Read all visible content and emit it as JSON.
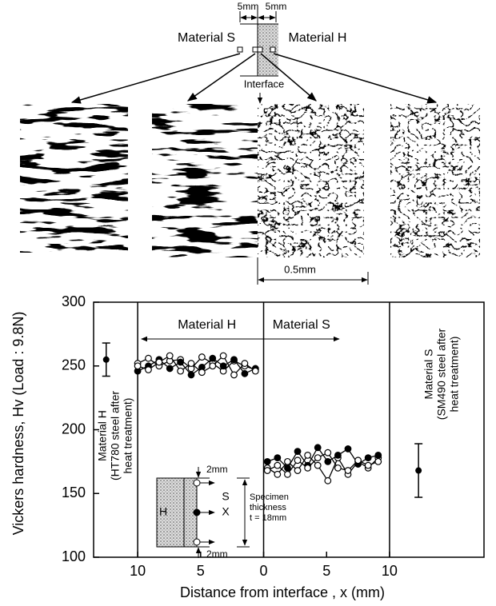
{
  "diagram": {
    "dimension_labels": [
      "5mm",
      "5mm"
    ],
    "left_label": "Material S",
    "right_label": "Material H",
    "interface_label": "Interface",
    "scale_bar_label": "0.5mm"
  },
  "chart_data": {
    "type": "line",
    "y_label": "Vickers hardness, Hv (Load : 9.8N)",
    "x_label": "Distance from interface , x (mm)",
    "xlim": [
      -13.5,
      17.5
    ],
    "ylim": [
      100,
      300
    ],
    "xticks": [
      {
        "value": -10,
        "label": "10"
      },
      {
        "value": -5,
        "label": "5"
      },
      {
        "value": 0,
        "label": "0"
      },
      {
        "value": 5,
        "label": "5"
      },
      {
        "value": 10,
        "label": "10"
      }
    ],
    "yticks": [
      100,
      150,
      200,
      250,
      300
    ],
    "dividers": [
      -10,
      0,
      10
    ],
    "x": [
      -10,
      -9.15,
      -8.3,
      -7.45,
      -6.6,
      -5.75,
      -4.9,
      -4.05,
      -3.2,
      -2.35,
      -1.5,
      -0.65,
      0,
      0.3,
      1.1,
      1.9,
      2.7,
      3.5,
      4.3,
      5.1,
      5.9,
      6.7,
      7.5,
      8.3,
      9.1
    ],
    "series": [
      {
        "color": "#000000",
        "marker": "open",
        "values": [
          252,
          256,
          250,
          254,
          255,
          248,
          257,
          252,
          246,
          254,
          250,
          247,
          null,
          170,
          165,
          175,
          168,
          180,
          172,
          160,
          178,
          165,
          175,
          170,
          178
        ]
      },
      {
        "color": "#000000",
        "marker": "filled",
        "values": [
          246,
          250,
          255,
          248,
          253,
          243,
          249,
          256,
          250,
          255,
          244,
          248,
          null,
          175,
          178,
          170,
          183,
          172,
          186,
          175,
          180,
          185,
          173,
          178,
          180
        ]
      },
      {
        "color": "#000000",
        "marker": "open",
        "values": [
          250,
          247,
          253,
          258,
          246,
          252,
          245,
          250,
          258,
          243,
          252,
          246,
          null,
          168,
          172,
          165,
          176,
          170,
          178,
          182,
          170,
          168,
          176,
          172,
          175
        ]
      }
    ],
    "reference_points": [
      {
        "x": -12.5,
        "value": 255,
        "error": 13
      },
      {
        "x": 12.3,
        "value": 168,
        "error": 21
      }
    ],
    "annotations": {
      "left_arrow": "Material H",
      "right_arrow": "Material S",
      "left_region": [
        "Material H",
        "(HT780 steel after",
        "heat treatment)"
      ],
      "right_region": [
        "Material S",
        "(SM490 steel after",
        "heat treatment)"
      ]
    },
    "inset": {
      "h": "H",
      "s": "S",
      "x": "X",
      "top_gap": "2mm",
      "bottom_gap": "2mm",
      "thickness": [
        "Specimen",
        "thickness",
        "t = 18mm"
      ]
    }
  }
}
